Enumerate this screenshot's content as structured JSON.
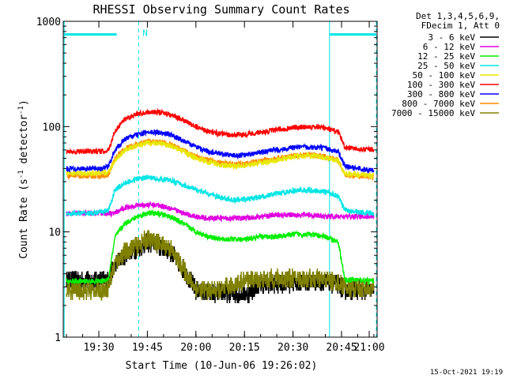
{
  "chart_data": {
    "type": "line",
    "title": "RHESSI Observing Summary Count Rates",
    "xlabel": "Start Time (10-Jun-06 19:26:02)",
    "ylabel": "Count Rate (s⁻¹ detector⁻¹)",
    "ylabel_parts": {
      "prefix": "Count Rate (s",
      "sup1": "-1",
      "mid": " detector",
      "sup2": "-1",
      "suffix": ")"
    },
    "yscale": "log",
    "ylim": [
      1,
      1000
    ],
    "xlim_minutes": [
      19.0,
      116.0
    ],
    "x_ticks": [
      {
        "minute": 30,
        "label": "19:30"
      },
      {
        "minute": 45,
        "label": "19:45"
      },
      {
        "minute": 60,
        "label": "20:00"
      },
      {
        "minute": 75,
        "label": "20:15"
      },
      {
        "minute": 90,
        "label": "20:30"
      },
      {
        "minute": 105,
        "label": "20:45"
      },
      {
        "minute": 120,
        "label": "21:00"
      }
    ],
    "y_ticks": [
      {
        "value": 1,
        "label": "1"
      },
      {
        "value": 10,
        "label": "10"
      },
      {
        "value": 100,
        "label": "100"
      },
      {
        "value": 1000,
        "label": "1000"
      }
    ],
    "legend_header": [
      "Det 1,3,4,5,6,9,",
      "FDecim 1, Att 0"
    ],
    "timestamp": "15-Oct-2021 19:19",
    "annotations": [
      {
        "type": "vline",
        "minute": 19.3,
        "style": "solid",
        "color": "#00e5e5"
      },
      {
        "type": "vline",
        "minute": 42.3,
        "style": "dashed",
        "color": "#00e5e5"
      },
      {
        "type": "vline",
        "minute": 101.3,
        "style": "solid",
        "color": "#00e5e5"
      },
      {
        "type": "vline",
        "minute": 117.2,
        "style": "dashed",
        "color": "#00e5e5"
      },
      {
        "type": "bar",
        "from": 19.3,
        "to": 35.5,
        "value": 750,
        "color": "#00e5e5"
      },
      {
        "type": "bar",
        "from": 101.3,
        "to": 117.0,
        "value": 750,
        "color": "#00e5e5"
      },
      {
        "type": "label",
        "minute": 43.5,
        "value": 780,
        "text": "N",
        "color": "#00e5e5"
      }
    ],
    "time_minutes": [
      20,
      28,
      31,
      33,
      35,
      38,
      42,
      45,
      48,
      52,
      56,
      60,
      64,
      68,
      72,
      76,
      80,
      85,
      90,
      95,
      100,
      104,
      106,
      110,
      115
    ],
    "series": [
      {
        "name": "3 - 6 keV",
        "color": "#000000",
        "values": [
          3.5,
          3.5,
          3.5,
          3.5,
          5.0,
          6.0,
          7.0,
          8.0,
          7.5,
          6.5,
          4.5,
          2.8,
          2.6,
          2.6,
          2.6,
          2.6,
          3.2,
          3.2,
          3.3,
          3.3,
          3.3,
          3.2,
          2.8,
          2.8,
          2.8
        ]
      },
      {
        "name": "6 - 12 keV",
        "color": "#e000e0",
        "values": [
          15,
          15,
          15,
          15,
          15,
          17,
          18,
          18,
          18,
          17,
          15,
          14,
          13.5,
          13.5,
          13.5,
          13.5,
          14,
          14.5,
          14.5,
          14.5,
          14,
          14,
          14,
          14,
          14
        ]
      },
      {
        "name": "12 - 25 keV",
        "color": "#00ee00",
        "values": [
          3.4,
          3.4,
          3.4,
          3.6,
          9,
          12,
          14,
          15,
          15,
          14,
          12,
          10,
          9,
          8.5,
          8.5,
          8.5,
          9,
          9,
          9.5,
          9.5,
          9,
          8,
          3.5,
          3.5,
          3.4
        ]
      },
      {
        "name": "25 - 50 keV",
        "color": "#00e5e5",
        "values": [
          15,
          15,
          15.5,
          16,
          25,
          29,
          32,
          33,
          32,
          31,
          28,
          25,
          23,
          21,
          20,
          20.5,
          21.5,
          23,
          24.5,
          25,
          24,
          22,
          16,
          15.5,
          15
        ]
      },
      {
        "name": "50 - 100 keV",
        "color": "#e8e800",
        "values": [
          36,
          36,
          36,
          37,
          48,
          60,
          66,
          70,
          70,
          66,
          58,
          50,
          46,
          43,
          42,
          43,
          45,
          48,
          52,
          53,
          51,
          47,
          36,
          35,
          34
        ]
      },
      {
        "name": "100 - 300 keV",
        "color": "#ff0000",
        "values": [
          58,
          58,
          58,
          60,
          90,
          118,
          132,
          138,
          138,
          130,
          115,
          100,
          90,
          85,
          83,
          85,
          88,
          93,
          98,
          100,
          97,
          89,
          64,
          62,
          60
        ]
      },
      {
        "name": "300 - 800 keV",
        "color": "#0000ff",
        "values": [
          40,
          40,
          40,
          42,
          60,
          76,
          84,
          88,
          88,
          84,
          74,
          64,
          58,
          55,
          53,
          54,
          57,
          60,
          63,
          64,
          62,
          58,
          42,
          40,
          38
        ]
      },
      {
        "name": "800 - 7000 keV",
        "color": "#ff8c00",
        "values": [
          34,
          34,
          34,
          35,
          50,
          62,
          68,
          72,
          72,
          68,
          60,
          52,
          48,
          45,
          44,
          45,
          47,
          50,
          53,
          54,
          52,
          48,
          35,
          34,
          33
        ]
      },
      {
        "name": "7000 - 15000 keV",
        "color": "#808000",
        "values": [
          2.8,
          2.8,
          2.8,
          3.0,
          5.0,
          6.5,
          7.5,
          8.5,
          8.0,
          7.0,
          4.5,
          2.9,
          2.8,
          2.8,
          3.2,
          3.5,
          3.5,
          3.6,
          3.6,
          3.6,
          3.5,
          3.3,
          3.0,
          2.9,
          2.9
        ]
      }
    ]
  }
}
